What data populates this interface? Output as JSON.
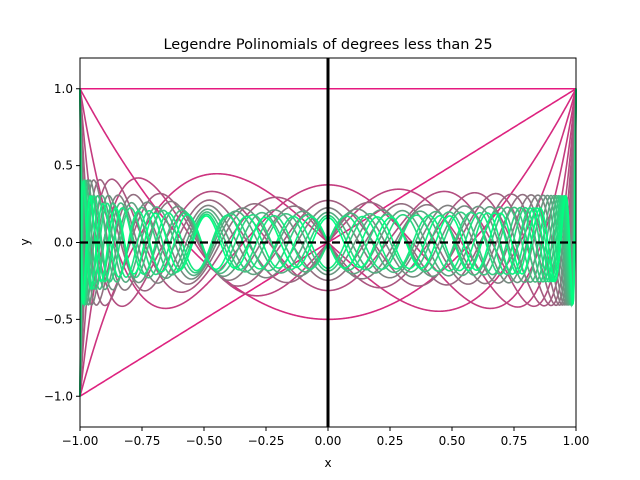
{
  "chart_data": {
    "type": "line",
    "title": "Legendre Polinomials of degrees less than 25",
    "xlabel": "x",
    "ylabel": "y",
    "xlim": [
      -1.0,
      1.0
    ],
    "ylim": [
      -1.2,
      1.2
    ],
    "xticks": [
      -1.0,
      -0.75,
      -0.5,
      -0.25,
      0.0,
      0.25,
      0.5,
      0.75,
      1.0
    ],
    "xtick_labels": [
      "−1.00",
      "−0.75",
      "−0.50",
      "−0.25",
      "0.00",
      "0.25",
      "0.50",
      "0.75",
      "1.00"
    ],
    "yticks": [
      -1.0,
      -0.5,
      0.0,
      0.5,
      1.0
    ],
    "ytick_labels": [
      "−1.0",
      "−0.5",
      "0.0",
      "0.5",
      "1.0"
    ],
    "grid": false,
    "legend": "none",
    "degrees": [
      0,
      24
    ],
    "series_function": "Legendre polynomial P_n(x)",
    "color_start": "#e6197f",
    "color_mid": "#808080",
    "color_end": "#00ff80",
    "reference_lines": {
      "vertical": {
        "x": 0.0,
        "color": "#000000",
        "style": "solid"
      },
      "horizontal": {
        "y": 0.0,
        "color": "#000000",
        "style": "dashed"
      }
    }
  }
}
